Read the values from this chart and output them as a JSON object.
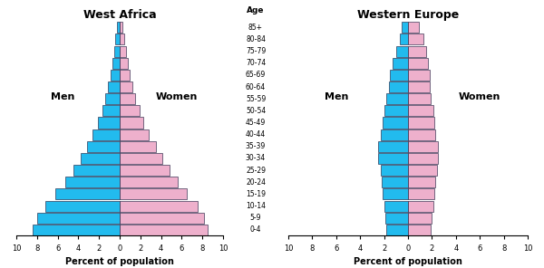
{
  "title_left": "West Africa",
  "title_right": "Western Europe",
  "age_labels": [
    "85+",
    "80-84",
    "75-79",
    "70-74",
    "65-69",
    "60-64",
    "55-59",
    "50-54",
    "45-49",
    "40-44",
    "35-39",
    "30-34",
    "25-29",
    "20-24",
    "15-19",
    "10-14",
    "5-9",
    "0-4"
  ],
  "west_africa_men": [
    0.3,
    0.4,
    0.5,
    0.7,
    0.9,
    1.1,
    1.4,
    1.7,
    2.1,
    2.6,
    3.2,
    3.8,
    4.5,
    5.3,
    6.2,
    7.2,
    8.0,
    8.4
  ],
  "west_africa_women": [
    0.3,
    0.4,
    0.6,
    0.8,
    1.0,
    1.2,
    1.5,
    1.9,
    2.3,
    2.8,
    3.5,
    4.1,
    4.8,
    5.6,
    6.5,
    7.5,
    8.2,
    8.5
  ],
  "western_europe_men": [
    0.5,
    0.7,
    1.0,
    1.3,
    1.5,
    1.6,
    1.8,
    2.0,
    2.1,
    2.3,
    2.5,
    2.5,
    2.3,
    2.2,
    2.1,
    2.0,
    1.9,
    1.8
  ],
  "western_europe_women": [
    0.9,
    1.3,
    1.5,
    1.7,
    1.8,
    1.8,
    1.9,
    2.1,
    2.2,
    2.3,
    2.5,
    2.5,
    2.4,
    2.3,
    2.2,
    2.1,
    2.0,
    1.9
  ],
  "men_color": "#22BBEE",
  "women_color": "#EEB0CC",
  "edge_color": "#111133",
  "background_color": "#ffffff",
  "xlabel": "Percent of population",
  "age_header": "Age",
  "men_label": "Men",
  "women_label": "Women"
}
